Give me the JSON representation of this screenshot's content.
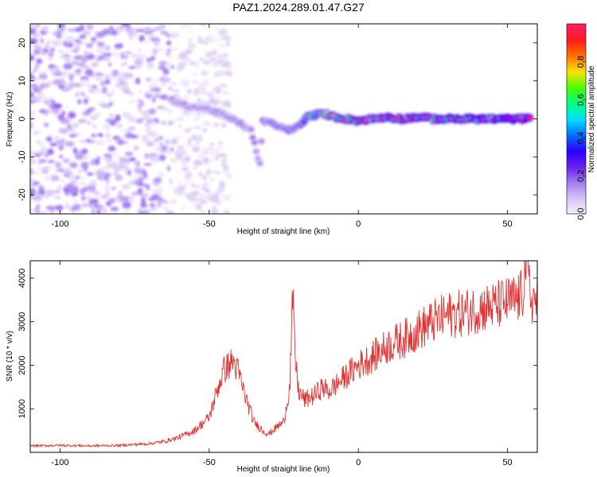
{
  "title": "PAZ1.2024.289.01.47.G27",
  "colors": {
    "snr_line": "#e53030",
    "frame": "#000000",
    "colormap": [
      "#f4f0fb",
      "#d6c4f5",
      "#a37cf0",
      "#6a1ff0",
      "#2a00ff",
      "#0070ff",
      "#00e0ff",
      "#00ff80",
      "#4aff00",
      "#ffe000",
      "#ff7000",
      "#ff1a1a",
      "#ff1f6e"
    ]
  },
  "chart_data": [
    {
      "type": "heatmap",
      "name": "spectrogram",
      "xlabel": "Height of straight line (km)",
      "ylabel": "Frequency (Hz)",
      "xlim": [
        -110,
        60
      ],
      "ylim": [
        -25,
        25
      ],
      "x_ticks": [
        -100,
        -50,
        0,
        50
      ],
      "x_tick_labels": [
        "-100",
        "-50",
        "0",
        "50"
      ],
      "y_ticks": [
        -20,
        -10,
        0,
        10,
        20
      ],
      "y_tick_labels": [
        "-20",
        "-10",
        "0",
        "10",
        "20"
      ],
      "colorbar": {
        "label": "Normalized spectral amplitude",
        "range": [
          0,
          1
        ],
        "ticks": [
          0,
          0.2,
          0.4,
          0.6,
          0.8
        ],
        "tick_labels": [
          "0.0",
          "0.2",
          "0.4",
          "0.6",
          "0.8"
        ]
      },
      "noise_region": {
        "x_range": [
          -110,
          -55
        ],
        "y_range": [
          -25,
          25
        ],
        "amplitude": 0.15
      },
      "ridge": [
        {
          "x": -63,
          "y": 5,
          "amp": 0.2
        },
        {
          "x": -58,
          "y": 3.5,
          "amp": 0.25
        },
        {
          "x": -50,
          "y": 2.5,
          "amp": 0.25
        },
        {
          "x": -45,
          "y": 1,
          "amp": 0.25
        },
        {
          "x": -40,
          "y": -1,
          "amp": 0.28
        },
        {
          "x": -36,
          "y": -3,
          "amp": 0.22
        },
        {
          "x": -33,
          "y": -12,
          "amp": 0.15
        },
        {
          "x": -32,
          "y": -0.5,
          "amp": 0.25
        },
        {
          "x": -28,
          "y": -1.5,
          "amp": 0.4
        },
        {
          "x": -24,
          "y": -3,
          "amp": 0.35
        },
        {
          "x": -20,
          "y": -2,
          "amp": 0.4
        },
        {
          "x": -17,
          "y": 0.5,
          "amp": 0.6
        },
        {
          "x": -12,
          "y": 1.5,
          "amp": 0.6
        },
        {
          "x": -8,
          "y": 0.5,
          "amp": 0.7
        },
        {
          "x": -4,
          "y": 0,
          "amp": 0.75
        },
        {
          "x": 0,
          "y": -0.5,
          "amp": 0.8
        },
        {
          "x": 5,
          "y": 0,
          "amp": 0.75
        },
        {
          "x": 10,
          "y": 0.5,
          "amp": 0.8
        },
        {
          "x": 15,
          "y": 0,
          "amp": 0.85
        },
        {
          "x": 20,
          "y": 0.5,
          "amp": 0.8
        },
        {
          "x": 25,
          "y": 0,
          "amp": 0.85
        },
        {
          "x": 30,
          "y": 0,
          "amp": 0.9
        },
        {
          "x": 35,
          "y": 0,
          "amp": 0.9
        },
        {
          "x": 40,
          "y": 0,
          "amp": 0.95
        },
        {
          "x": 45,
          "y": 0,
          "amp": 0.95
        },
        {
          "x": 50,
          "y": 0,
          "amp": 0.95
        },
        {
          "x": 55,
          "y": 0,
          "amp": 0.95
        },
        {
          "x": 58,
          "y": 0,
          "amp": 0.9
        }
      ]
    },
    {
      "type": "line",
      "name": "snr",
      "xlabel": "Height of straight line (km)",
      "ylabel": "SNR (10 * v/v)",
      "xlim": [
        -110,
        60
      ],
      "ylim": [
        0,
        4400
      ],
      "x_ticks": [
        -100,
        -50,
        0,
        50
      ],
      "x_tick_labels": [
        "-100",
        "-50",
        "0",
        "50"
      ],
      "y_ticks": [
        1000,
        2000,
        3000,
        4000
      ],
      "y_tick_labels": [
        "1000",
        "2000",
        "3000",
        "4000"
      ],
      "series": [
        {
          "x": [
            -110,
            -100,
            -90,
            -80,
            -70,
            -65,
            -60,
            -55,
            -50,
            -47,
            -45,
            -42,
            -40,
            -38,
            -35,
            -32,
            -30,
            -27,
            -25,
            -23,
            -22,
            -21,
            -20,
            -18,
            -15,
            -12,
            -10,
            -5,
            0,
            5,
            10,
            15,
            20,
            25,
            30,
            35,
            40,
            45,
            50,
            53,
            55,
            56,
            58
          ],
          "y": [
            150,
            160,
            150,
            160,
            200,
            250,
            350,
            500,
            800,
            1500,
            1900,
            2100,
            1800,
            1300,
            700,
            500,
            420,
            600,
            700,
            1500,
            3500,
            2000,
            1400,
            1200,
            1300,
            1500,
            1400,
            1700,
            2000,
            2200,
            2450,
            2600,
            2800,
            3000,
            3150,
            3200,
            3300,
            3350,
            3450,
            3500,
            3600,
            4400,
            3500
          ]
        }
      ]
    }
  ]
}
